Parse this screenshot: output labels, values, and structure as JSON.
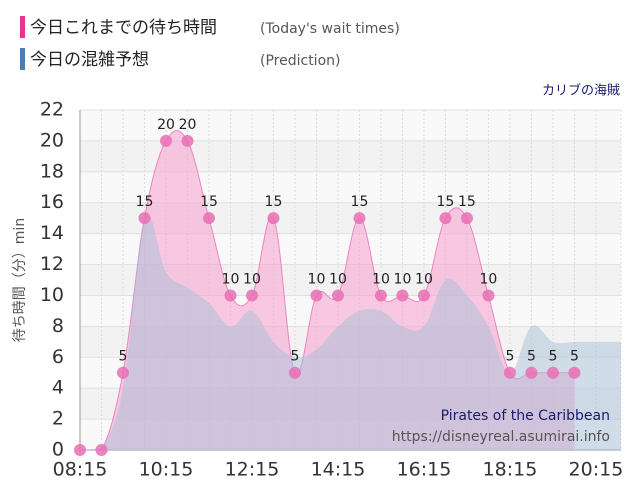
{
  "chart_data": {
    "type": "area",
    "title": "カリブの海賊",
    "y_label": "待ち時間（分）min",
    "watermark": [
      "Pirates of the Caribbean",
      "https://disneyreal.asumirai.info"
    ],
    "series": [
      {
        "name": "今日これまでの待ち時間",
        "note": "(Today's wait times)",
        "color": "#e96fb5",
        "x": [
          "08:15",
          "08:45",
          "09:15",
          "09:45",
          "10:15",
          "10:45",
          "11:15",
          "11:45",
          "12:15",
          "12:45",
          "13:15",
          "13:45",
          "14:15",
          "14:45",
          "15:15",
          "15:45",
          "16:15",
          "16:45",
          "17:15",
          "17:45",
          "18:15",
          "18:45",
          "19:15",
          "19:45"
        ],
        "values": [
          0,
          0,
          5,
          15,
          20,
          20,
          15,
          10,
          10,
          15,
          5,
          10,
          10,
          15,
          10,
          10,
          10,
          15,
          15,
          10,
          5,
          5,
          5,
          5
        ],
        "value_labels": [
          null,
          null,
          "5",
          "15",
          "20",
          "20",
          "15",
          "10",
          "10",
          "15",
          "5",
          "10",
          "10",
          "15",
          "10",
          "10",
          "10",
          "15",
          "15",
          "10",
          "5",
          "5",
          "5",
          "5"
        ]
      },
      {
        "name": "今日の混雑予想",
        "note": "(Prediction)",
        "color": "#4a7fae",
        "x": [
          "08:15",
          "08:45",
          "09:15",
          "09:45",
          "10:15",
          "10:45",
          "11:15",
          "11:45",
          "12:15",
          "12:45",
          "13:15",
          "13:45",
          "14:15",
          "14:45",
          "15:15",
          "15:45",
          "16:15",
          "16:45",
          "17:15",
          "17:45",
          "18:15",
          "18:45",
          "19:15",
          "19:45",
          "20:15",
          "20:50"
        ],
        "values": [
          0,
          0.2,
          4,
          15,
          11.5,
          10.5,
          9.5,
          8,
          9,
          7,
          6,
          6.5,
          8,
          9,
          9,
          8,
          8,
          11,
          10,
          8,
          5,
          8,
          7,
          7,
          7,
          7
        ]
      }
    ],
    "xlim": [
      "08:15",
      "20:50"
    ],
    "xticks": [
      "08:15",
      "10:15",
      "12:15",
      "14:15",
      "16:15",
      "18:15",
      "20:15"
    ],
    "ylim": [
      0,
      22
    ],
    "yticks": [
      0,
      2,
      4,
      6,
      8,
      10,
      12,
      14,
      16,
      18,
      20,
      22
    ],
    "grid": true
  }
}
